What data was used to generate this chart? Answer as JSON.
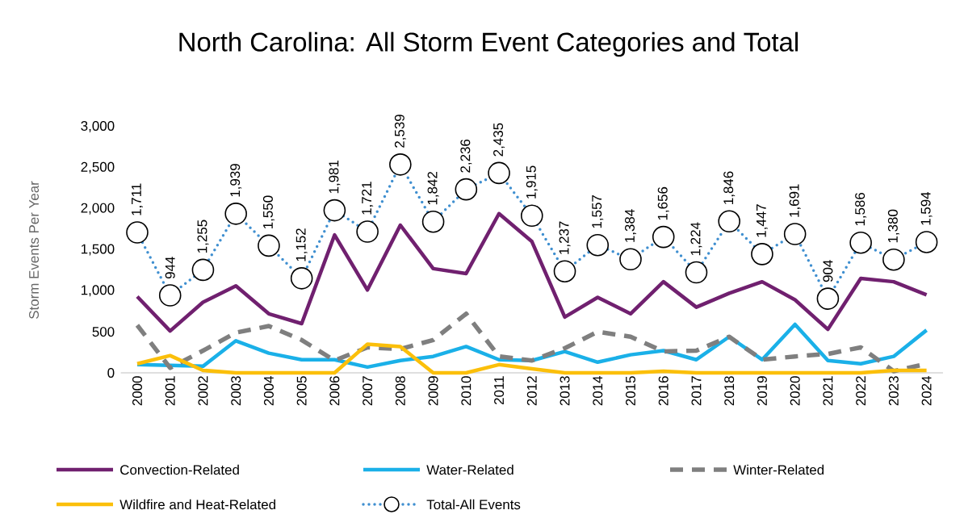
{
  "chart_data": {
    "type": "line",
    "title": "North Carolina:  All Storm Event Categories and Total",
    "ylabel": "Storm Events Per Year",
    "categories": [
      "2000",
      "2001",
      "2002",
      "2003",
      "2004",
      "2005",
      "2006",
      "2007",
      "2008",
      "2009",
      "2010",
      "2011",
      "2012",
      "2013",
      "2014",
      "2015",
      "2016",
      "2017",
      "2018",
      "2019",
      "2020",
      "2021",
      "2022",
      "2023",
      "2024"
    ],
    "series": [
      {
        "name": "Convection-Related",
        "color": "#70206f",
        "line_style": "solid",
        "marker": "none",
        "values": [
          930,
          510,
          860,
          1060,
          720,
          600,
          1680,
          1010,
          1800,
          1270,
          1210,
          1940,
          1600,
          680,
          920,
          720,
          1110,
          800,
          970,
          1110,
          890,
          530,
          1150,
          1110,
          950
        ]
      },
      {
        "name": "Water-Related",
        "color": "#1ab0e8",
        "line_style": "solid",
        "marker": "none",
        "values": [
          100,
          90,
          80,
          390,
          240,
          160,
          160,
          70,
          150,
          200,
          320,
          160,
          150,
          260,
          130,
          220,
          270,
          160,
          440,
          160,
          590,
          150,
          110,
          200,
          520
        ]
      },
      {
        "name": "Winter-Related",
        "color": "#7f7f7f",
        "line_style": "dashed",
        "marker": "none",
        "values": [
          580,
          60,
          270,
          490,
          570,
          400,
          150,
          310,
          290,
          400,
          720,
          200,
          150,
          300,
          500,
          440,
          260,
          270,
          440,
          160,
          200,
          230,
          310,
          20,
          110
        ]
      },
      {
        "name": "Wildfire and Heat-Related",
        "color": "#fbbf0a",
        "line_style": "solid",
        "marker": "none",
        "values": [
          110,
          210,
          30,
          0,
          0,
          0,
          0,
          350,
          320,
          0,
          0,
          100,
          50,
          0,
          0,
          0,
          20,
          0,
          0,
          0,
          0,
          0,
          0,
          30,
          30
        ]
      },
      {
        "name": "Total-All Events",
        "color": "#3f8fd0",
        "line_style": "dotted",
        "marker": "circle",
        "values": [
          1711,
          944,
          1255,
          1939,
          1550,
          1152,
          1981,
          1721,
          2539,
          1842,
          2236,
          2435,
          1915,
          1237,
          1557,
          1384,
          1656,
          1224,
          1846,
          1447,
          1691,
          904,
          1586,
          1380,
          1594
        ],
        "value_labels": [
          "1,711",
          "944",
          "1,255",
          "1,939",
          "1,550",
          "1,152",
          "1,981",
          "1,721",
          "2,539",
          "1,842",
          "2,236",
          "2,435",
          "1,915",
          "1,237",
          "1,557",
          "1,384",
          "1,656",
          "1,224",
          "1,846",
          "1,447",
          "1,691",
          "904",
          "1,586",
          "1,380",
          "1,594"
        ]
      }
    ],
    "ylim": [
      0,
      3000
    ],
    "yticks": [
      0,
      500,
      {
        "value": 1000,
        "label": "1,000"
      },
      {
        "value": 1500,
        "label": "1,500"
      },
      {
        "value": 2000,
        "label": "2,000"
      },
      {
        "value": 2500,
        "label": "2,500"
      },
      {
        "value": 3000,
        "label": "3,000"
      }
    ],
    "grid": false,
    "legend": "bottom"
  }
}
